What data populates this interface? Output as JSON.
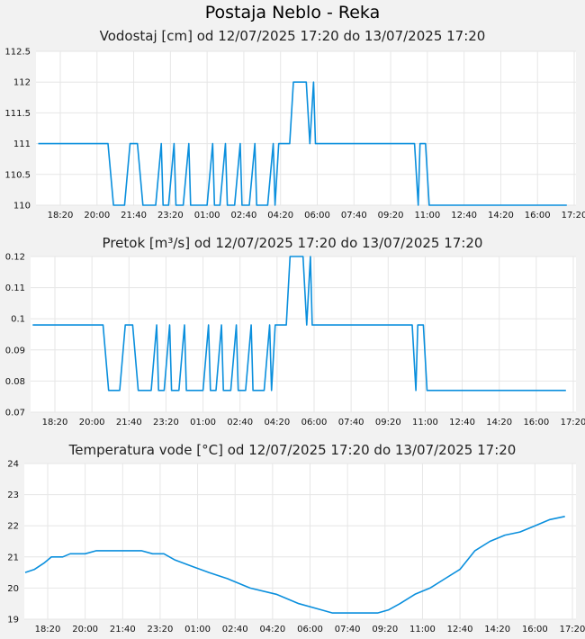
{
  "page_title": "Postaja Neblo - Reka",
  "colors": {
    "series": "#0a8fdd",
    "background": "#f2f2f2",
    "plot": "#ffffff",
    "grid": "#e6e6e6"
  },
  "chart_data": [
    {
      "type": "line",
      "title": "Vodostaj [cm] od 12/07/2025 17:20 do 13/07/2025 17:20",
      "xlabel": "",
      "ylabel": "",
      "x_ticks": [
        "18:20",
        "20:00",
        "21:40",
        "23:20",
        "01:00",
        "02:40",
        "04:20",
        "06:00",
        "07:40",
        "09:20",
        "11:00",
        "12:40",
        "14:20",
        "16:00",
        "17:20"
      ],
      "y_ticks": [
        "110",
        "110.5",
        "111",
        "111.5",
        "112",
        "112.5"
      ],
      "ylim": [
        110,
        112.5
      ],
      "grid": true,
      "series": [
        {
          "points": [
            [
              "17:20",
              111
            ],
            [
              "20:30",
              111
            ],
            [
              "20:45",
              110
            ],
            [
              "21:15",
              110
            ],
            [
              "21:30",
              111
            ],
            [
              "21:50",
              111
            ],
            [
              "22:05",
              110
            ],
            [
              "22:40",
              110
            ],
            [
              "22:55",
              111
            ],
            [
              "23:00",
              110
            ],
            [
              "23:15",
              110
            ],
            [
              "23:30",
              111
            ],
            [
              "23:35",
              110
            ],
            [
              "23:55",
              110
            ],
            [
              "24:10",
              111
            ],
            [
              "24:15",
              110
            ],
            [
              "25:00",
              110
            ],
            [
              "25:15",
              111
            ],
            [
              "25:20",
              110
            ],
            [
              "25:35",
              110
            ],
            [
              "25:50",
              111
            ],
            [
              "25:55",
              110
            ],
            [
              "26:15",
              110
            ],
            [
              "26:30",
              111
            ],
            [
              "26:35",
              110
            ],
            [
              "26:55",
              110
            ],
            [
              "27:10",
              111
            ],
            [
              "27:15",
              110
            ],
            [
              "27:45",
              110
            ],
            [
              "28:00",
              111
            ],
            [
              "28:05",
              110
            ],
            [
              "28:15",
              111
            ],
            [
              "28:45",
              111
            ],
            [
              "28:55",
              112
            ],
            [
              "29:30",
              112
            ],
            [
              "29:40",
              111
            ],
            [
              "29:50",
              112
            ],
            [
              "29:55",
              111
            ],
            [
              "30:00",
              111
            ],
            [
              "34:25",
              111
            ],
            [
              "34:35",
              110
            ],
            [
              "34:40",
              111
            ],
            [
              "34:55",
              111
            ],
            [
              "35:05",
              110
            ],
            [
              "41:20",
              110
            ]
          ]
        }
      ]
    },
    {
      "type": "line",
      "title": "Pretok [m³/s] od 12/07/2025 17:20 do 13/07/2025 17:20",
      "xlabel": "",
      "ylabel": "",
      "x_ticks": [
        "18:20",
        "20:00",
        "21:40",
        "23:20",
        "01:00",
        "02:40",
        "04:20",
        "06:00",
        "07:40",
        "09:20",
        "11:00",
        "12:40",
        "14:20",
        "16:00",
        "17:20"
      ],
      "y_ticks": [
        "0.07",
        "0.08",
        "0.09",
        "0.1",
        "0.11",
        "0.12"
      ],
      "ylim": [
        0.07,
        0.12
      ],
      "grid": true,
      "series": [
        {
          "points": [
            [
              "17:20",
              0.098
            ],
            [
              "20:30",
              0.098
            ],
            [
              "20:45",
              0.077
            ],
            [
              "21:15",
              0.077
            ],
            [
              "21:30",
              0.098
            ],
            [
              "21:50",
              0.098
            ],
            [
              "22:05",
              0.077
            ],
            [
              "22:40",
              0.077
            ],
            [
              "22:55",
              0.098
            ],
            [
              "23:00",
              0.077
            ],
            [
              "23:15",
              0.077
            ],
            [
              "23:30",
              0.098
            ],
            [
              "23:35",
              0.077
            ],
            [
              "23:55",
              0.077
            ],
            [
              "24:10",
              0.098
            ],
            [
              "24:15",
              0.077
            ],
            [
              "25:00",
              0.077
            ],
            [
              "25:15",
              0.098
            ],
            [
              "25:20",
              0.077
            ],
            [
              "25:35",
              0.077
            ],
            [
              "25:50",
              0.098
            ],
            [
              "25:55",
              0.077
            ],
            [
              "26:15",
              0.077
            ],
            [
              "26:30",
              0.098
            ],
            [
              "26:35",
              0.077
            ],
            [
              "26:55",
              0.077
            ],
            [
              "27:10",
              0.098
            ],
            [
              "27:15",
              0.077
            ],
            [
              "27:45",
              0.077
            ],
            [
              "28:00",
              0.098
            ],
            [
              "28:05",
              0.077
            ],
            [
              "28:15",
              0.098
            ],
            [
              "28:45",
              0.098
            ],
            [
              "28:55",
              0.12
            ],
            [
              "29:30",
              0.12
            ],
            [
              "29:40",
              0.098
            ],
            [
              "29:50",
              0.12
            ],
            [
              "29:55",
              0.098
            ],
            [
              "30:00",
              0.098
            ],
            [
              "34:25",
              0.098
            ],
            [
              "34:35",
              0.077
            ],
            [
              "34:40",
              0.098
            ],
            [
              "34:55",
              0.098
            ],
            [
              "35:05",
              0.077
            ],
            [
              "41:20",
              0.077
            ]
          ]
        }
      ]
    },
    {
      "type": "line",
      "title": "Temperatura vode [°C] od 12/07/2025 17:20 do 13/07/2025 17:20",
      "xlabel": "",
      "ylabel": "",
      "x_ticks": [
        "18:20",
        "20:00",
        "21:40",
        "23:20",
        "01:00",
        "02:40",
        "04:20",
        "06:00",
        "07:40",
        "09:20",
        "11:00",
        "12:40",
        "14:20",
        "16:00",
        "17:20"
      ],
      "y_ticks": [
        "19",
        "20",
        "21",
        "22",
        "23",
        "24"
      ],
      "ylim": [
        19,
        24
      ],
      "grid": true,
      "series": [
        {
          "points": [
            [
              "17:20",
              20.5
            ],
            [
              "17:45",
              20.6
            ],
            [
              "18:10",
              20.8
            ],
            [
              "18:30",
              21.0
            ],
            [
              "19:00",
              21.0
            ],
            [
              "19:20",
              21.1
            ],
            [
              "20:00",
              21.1
            ],
            [
              "20:30",
              21.2
            ],
            [
              "21:40",
              21.2
            ],
            [
              "22:30",
              21.2
            ],
            [
              "23:00",
              21.1
            ],
            [
              "23:30",
              21.1
            ],
            [
              "24:00",
              20.9
            ],
            [
              "24:45",
              20.7
            ],
            [
              "25:30",
              20.5
            ],
            [
              "26:20",
              20.3
            ],
            [
              "27:20",
              20.0
            ],
            [
              "28:30",
              19.8
            ],
            [
              "29:30",
              19.5
            ],
            [
              "30:30",
              19.3
            ],
            [
              "31:00",
              19.2
            ],
            [
              "33:00",
              19.2
            ],
            [
              "33:30",
              19.3
            ],
            [
              "34:00",
              19.5
            ],
            [
              "34:40",
              19.8
            ],
            [
              "35:20",
              20.0
            ],
            [
              "36:00",
              20.3
            ],
            [
              "36:40",
              20.6
            ],
            [
              "37:20",
              21.2
            ],
            [
              "38:00",
              21.5
            ],
            [
              "38:40",
              21.7
            ],
            [
              "39:20",
              21.8
            ],
            [
              "40:00",
              22.0
            ],
            [
              "40:40",
              22.2
            ],
            [
              "41:20",
              22.3
            ]
          ]
        }
      ]
    }
  ]
}
